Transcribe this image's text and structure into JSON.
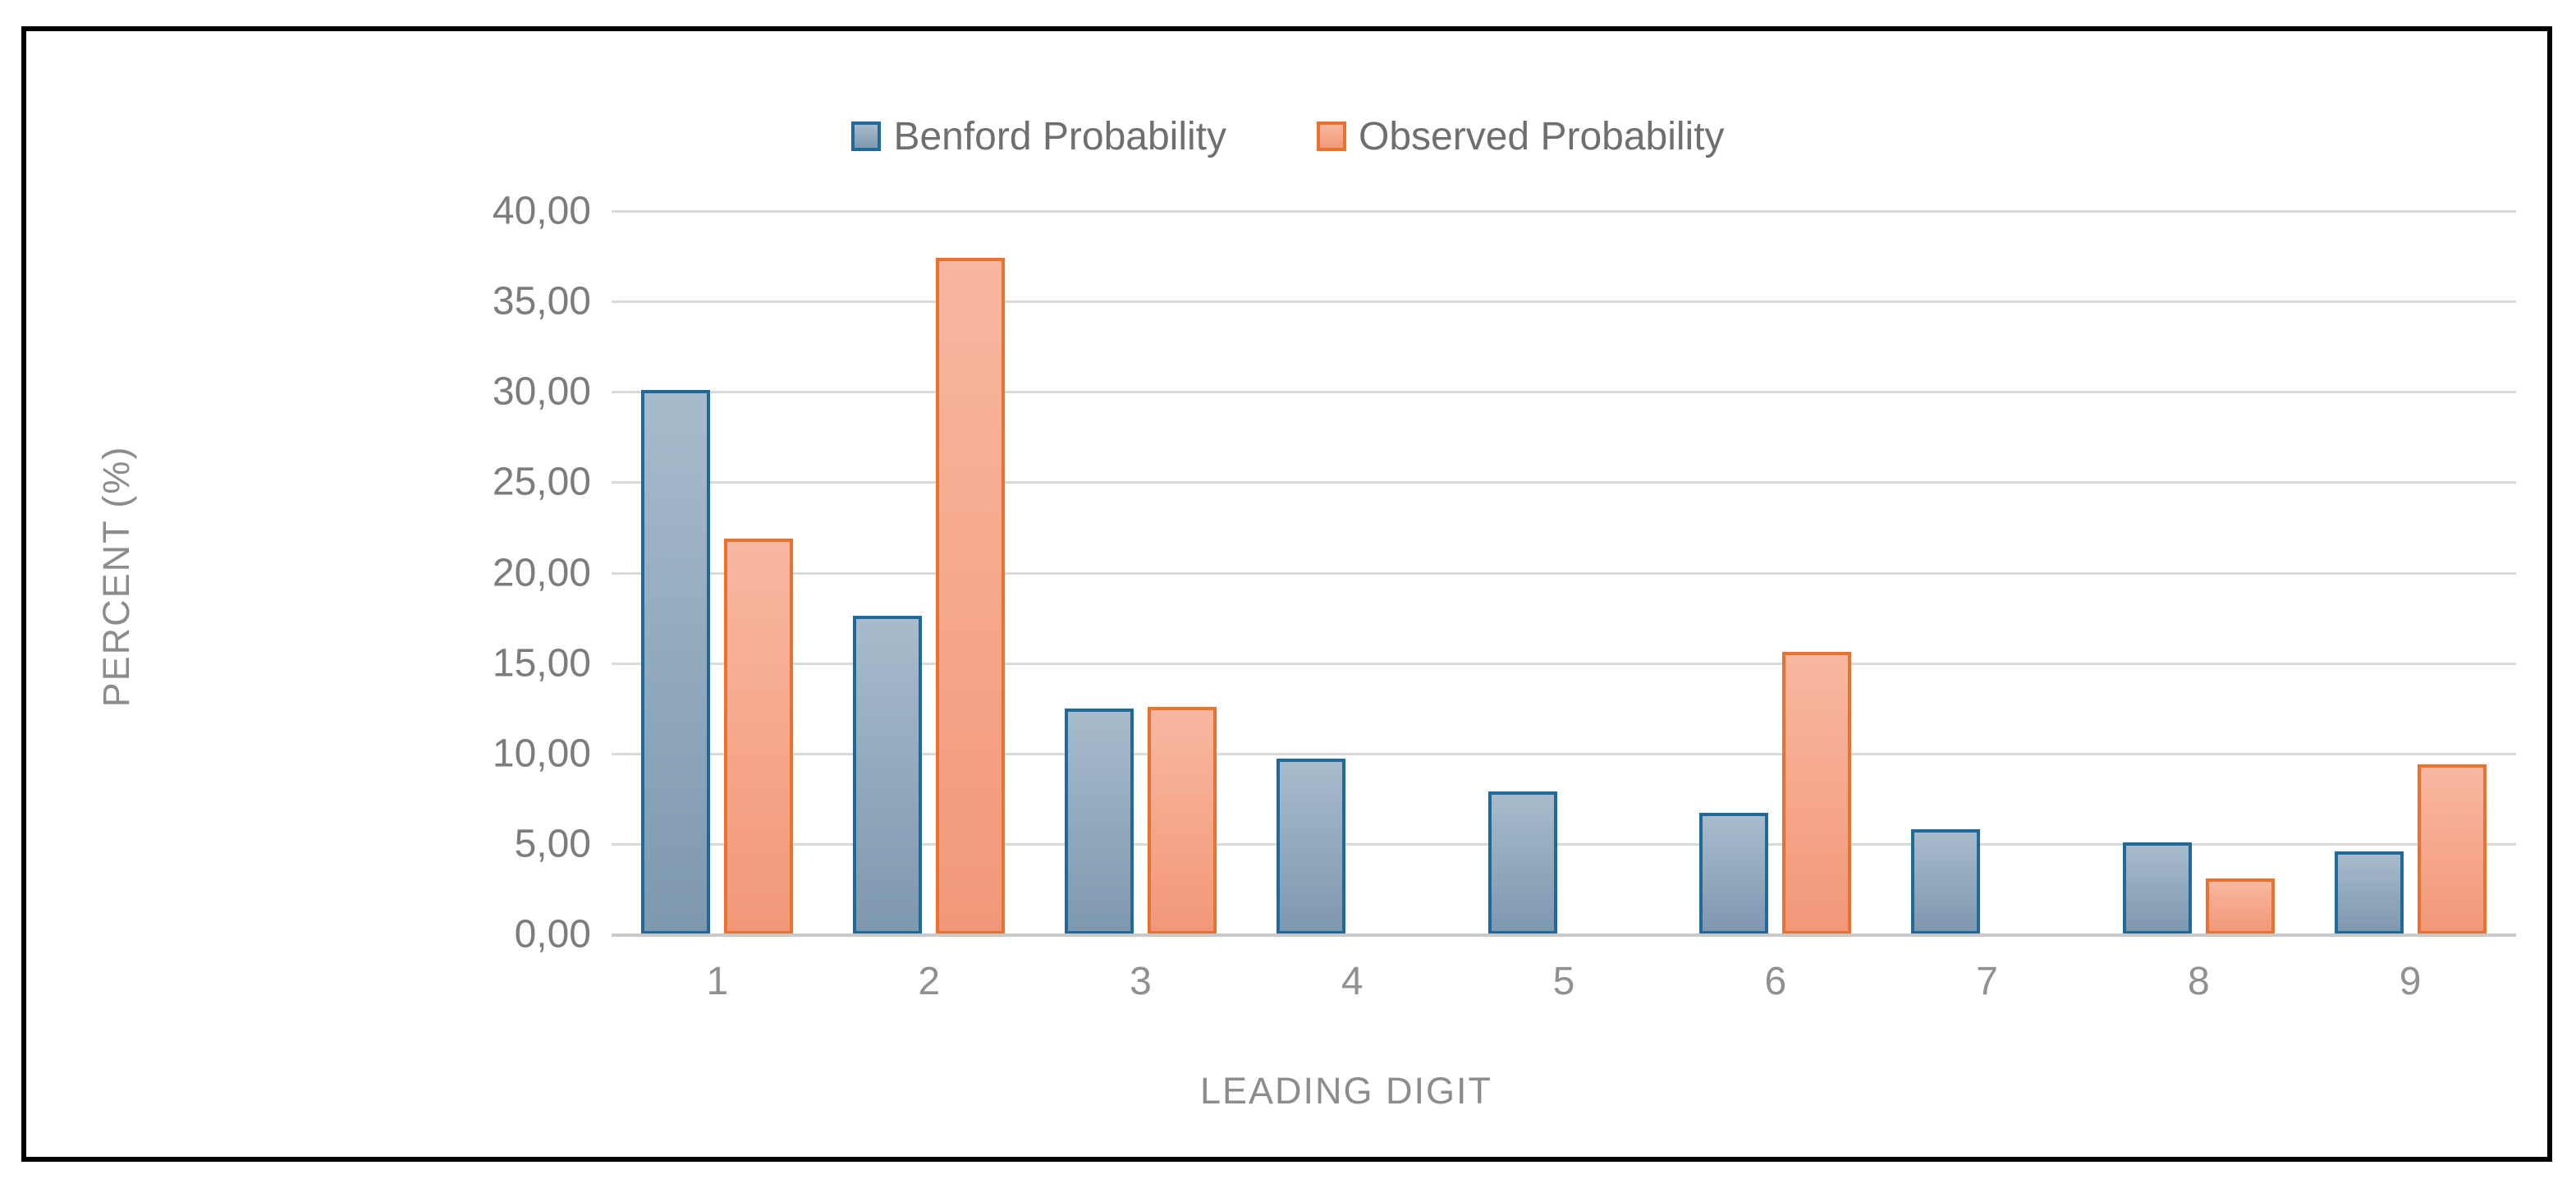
{
  "chart_data": {
    "type": "bar",
    "title": "",
    "categories": [
      "1",
      "2",
      "3",
      "4",
      "5",
      "6",
      "7",
      "8",
      "9"
    ],
    "series": [
      {
        "name": "Benford Probability",
        "values": [
          30.1,
          17.6,
          12.5,
          9.7,
          7.9,
          6.7,
          5.8,
          5.1,
          4.6
        ],
        "border_color": "#1f6a9b",
        "fill_top": "#a7bbcc",
        "fill_bottom": "#7e98ae"
      },
      {
        "name": "Observed Probability",
        "values": [
          21.9,
          37.4,
          12.6,
          0,
          0,
          15.6,
          0,
          3.1,
          9.4
        ],
        "border_color": "#e9732e",
        "fill_top": "#f8b7a0",
        "fill_bottom": "#f29879"
      }
    ],
    "xlabel": "LEADING DIGIT",
    "ylabel": "PERCENT (%)",
    "ylim": [
      0,
      40
    ],
    "ytick_step": 5,
    "ytick_labels_bottom_to_top": [
      "0,00",
      "5,00",
      "10,00",
      "15,00",
      "20,00",
      "25,00",
      "30,00",
      "35,00",
      "40,00"
    ],
    "grid": true,
    "legend_position": "top-center",
    "colors": {
      "gridline": "#dadada",
      "axis_line": "#c9c9c9",
      "tick_text": "#7c7c7c",
      "category_text": "#909090",
      "axis_title_text": "#8c8c8c",
      "legend_text": "#6f6f6f",
      "frame_border": "#000000",
      "background": "#ffffff"
    }
  }
}
